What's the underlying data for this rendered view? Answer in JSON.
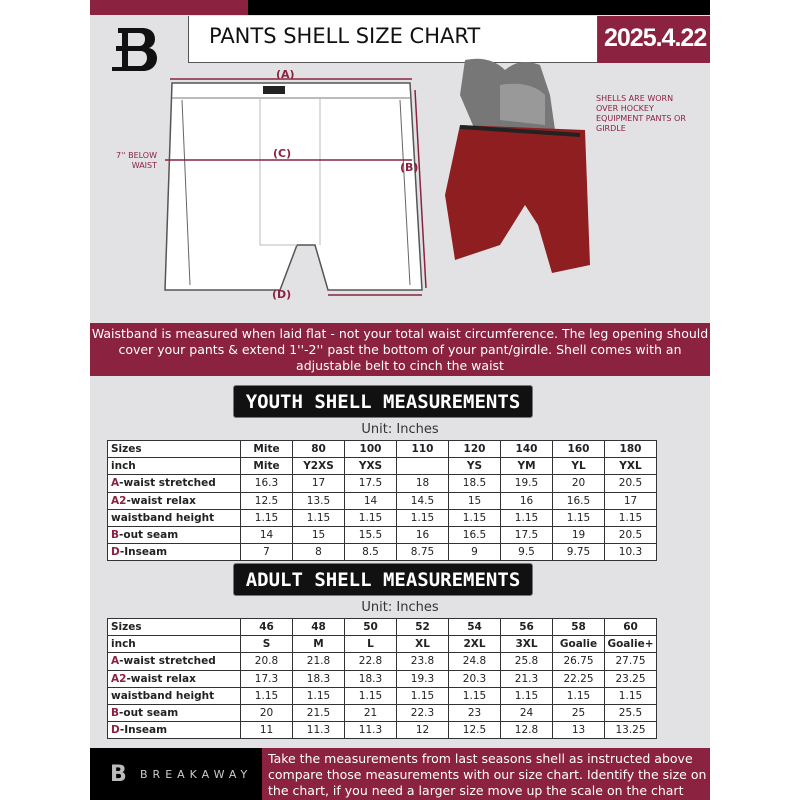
{
  "header": {
    "title": "PANTS SHELL SIZE CHART",
    "date": "2025.4.22",
    "logo_letter": "B"
  },
  "diagram": {
    "label_a": "(A)",
    "label_b": "(B)",
    "label_c": "(C)",
    "label_d": "(D)",
    "waist_note": "7'' BELOW WAIST"
  },
  "photo_note": "SHELLS ARE WORN OVER HOCKEY EQUIPMENT PANTS OR GIRDLE",
  "banner": "Waistband is measured when laid flat - not your total waist circumference. The leg opening should cover your pants & extend 1''-2'' past the bottom of your pant/girdle. Shell comes with an adjustable belt to cinch the waist",
  "youth": {
    "heading": "YOUTH SHELL MEASUREMENTS",
    "unit": "Unit: Inches",
    "rows": [
      {
        "prefix": "",
        "label": "Sizes",
        "values": [
          "Mite",
          "80",
          "100",
          "110",
          "120",
          "140",
          "160",
          "180"
        ]
      },
      {
        "prefix": "",
        "label": "inch",
        "values": [
          "Mite",
          "Y2XS",
          "YXS",
          "",
          "YS",
          "YM",
          "YL",
          "YXL"
        ]
      },
      {
        "prefix": "A",
        "label": "-waist stretched",
        "values": [
          "16.3",
          "17",
          "17.5",
          "18",
          "18.5",
          "19.5",
          "20",
          "20.5"
        ]
      },
      {
        "prefix": "A2",
        "label": "-waist relax",
        "values": [
          "12.5",
          "13.5",
          "14",
          "14.5",
          "15",
          "16",
          "16.5",
          "17"
        ]
      },
      {
        "prefix": "",
        "label": "waistband height",
        "values": [
          "1.15",
          "1.15",
          "1.15",
          "1.15",
          "1.15",
          "1.15",
          "1.15",
          "1.15"
        ]
      },
      {
        "prefix": "B",
        "label": "-out seam",
        "values": [
          "14",
          "15",
          "15.5",
          "16",
          "16.5",
          "17.5",
          "19",
          "20.5"
        ]
      },
      {
        "prefix": "D",
        "label": "-Inseam",
        "values": [
          "7",
          "8",
          "8.5",
          "8.75",
          "9",
          "9.5",
          "9.75",
          "10.3"
        ]
      }
    ]
  },
  "adult": {
    "heading": "ADULT SHELL MEASUREMENTS",
    "unit": "Unit: Inches",
    "rows": [
      {
        "prefix": "",
        "label": "Sizes",
        "values": [
          "46",
          "48",
          "50",
          "52",
          "54",
          "56",
          "58",
          "60"
        ]
      },
      {
        "prefix": "",
        "label": "inch",
        "values": [
          "S",
          "M",
          "L",
          "XL",
          "2XL",
          "3XL",
          "Goalie",
          "Goalie+"
        ]
      },
      {
        "prefix": "A",
        "label": "-waist stretched",
        "values": [
          "20.8",
          "21.8",
          "22.8",
          "23.8",
          "24.8",
          "25.8",
          "26.75",
          "27.75"
        ]
      },
      {
        "prefix": "A2",
        "label": "-waist relax",
        "values": [
          "17.3",
          "18.3",
          "18.3",
          "19.3",
          "20.3",
          "21.3",
          "22.25",
          "23.25"
        ]
      },
      {
        "prefix": "",
        "label": "waistband height",
        "values": [
          "1.15",
          "1.15",
          "1.15",
          "1.15",
          "1.15",
          "1.15",
          "1.15",
          "1.15"
        ]
      },
      {
        "prefix": "B",
        "label": "-out seam",
        "values": [
          "20",
          "21.5",
          "21",
          "22.3",
          "23",
          "24",
          "25",
          "25.5"
        ]
      },
      {
        "prefix": "D",
        "label": "-Inseam",
        "values": [
          "11",
          "11.3",
          "11.3",
          "12",
          "12.5",
          "12.8",
          "13",
          "13.25"
        ]
      }
    ]
  },
  "footer": {
    "brand": "BREAKAWAY",
    "instructions": "Take the measurements from last seasons shell as instructed above compare those measurements  with our size chart. Identify the size on the chart, if you need a larger size move up the scale on the chart"
  },
  "colors": {
    "accent": "#8a2240",
    "dark": "#111111",
    "background": "#e2e2e5"
  }
}
